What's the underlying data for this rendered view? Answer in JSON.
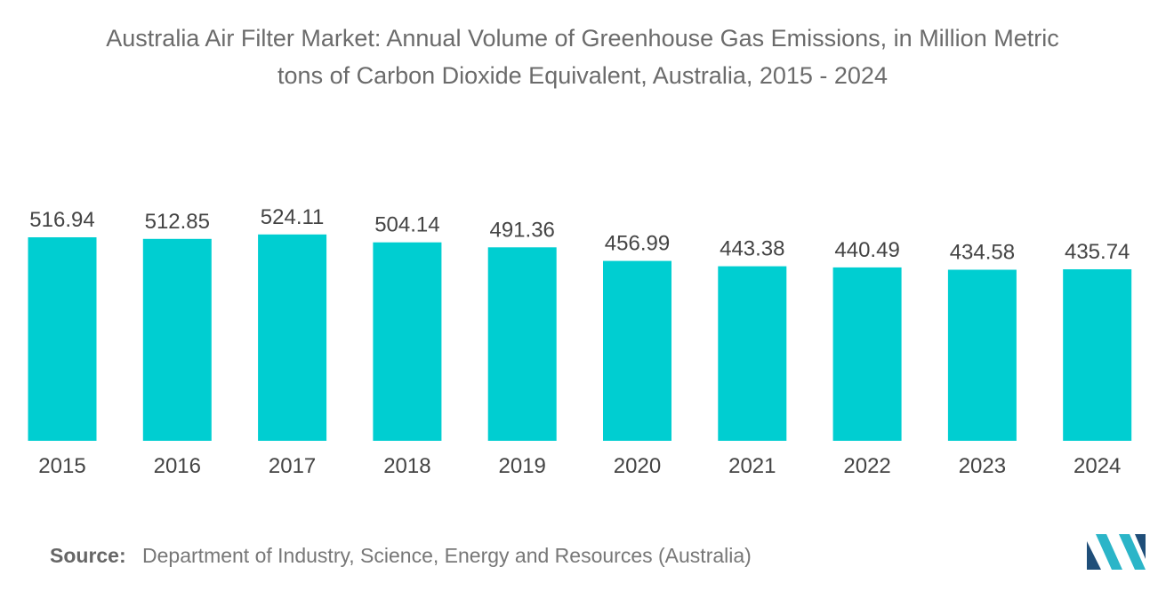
{
  "title_lines": [
    "Australia Air Filter Market: Annual Volume of Greenhouse Gas Emissions, in Million Metric",
    "tons of Carbon Dioxide Equivalent, Australia, 2015 - 2024"
  ],
  "source": {
    "label": "Source:",
    "text": "Department of Industry, Science, Energy and Resources (Australia)"
  },
  "logo": {
    "name": "mordor-intelligence-logo",
    "color_dark": "#1f4e79",
    "color_light": "#2bb5c8"
  },
  "chart_data": {
    "type": "bar",
    "title": "Australia Air Filter Market: Annual Volume of Greenhouse Gas Emissions, in Million Metric tons of Carbon Dioxide Equivalent, Australia, 2015 - 2024",
    "categories": [
      "2015",
      "2016",
      "2017",
      "2018",
      "2019",
      "2020",
      "2021",
      "2022",
      "2023",
      "2024"
    ],
    "values": [
      516.94,
      512.85,
      524.11,
      504.14,
      491.36,
      456.99,
      443.38,
      440.49,
      434.58,
      435.74
    ],
    "value_labels": [
      "516.94",
      "512.85",
      "524.11",
      "504.14",
      "491.36",
      "456.99",
      "443.38",
      "440.49",
      "434.58",
      "435.74"
    ],
    "xlabel": "",
    "ylabel": "",
    "ylim": [
      0,
      535
    ],
    "grid": false,
    "legend": "none",
    "bar_color": "#00ced1",
    "label_color": "#444444"
  }
}
